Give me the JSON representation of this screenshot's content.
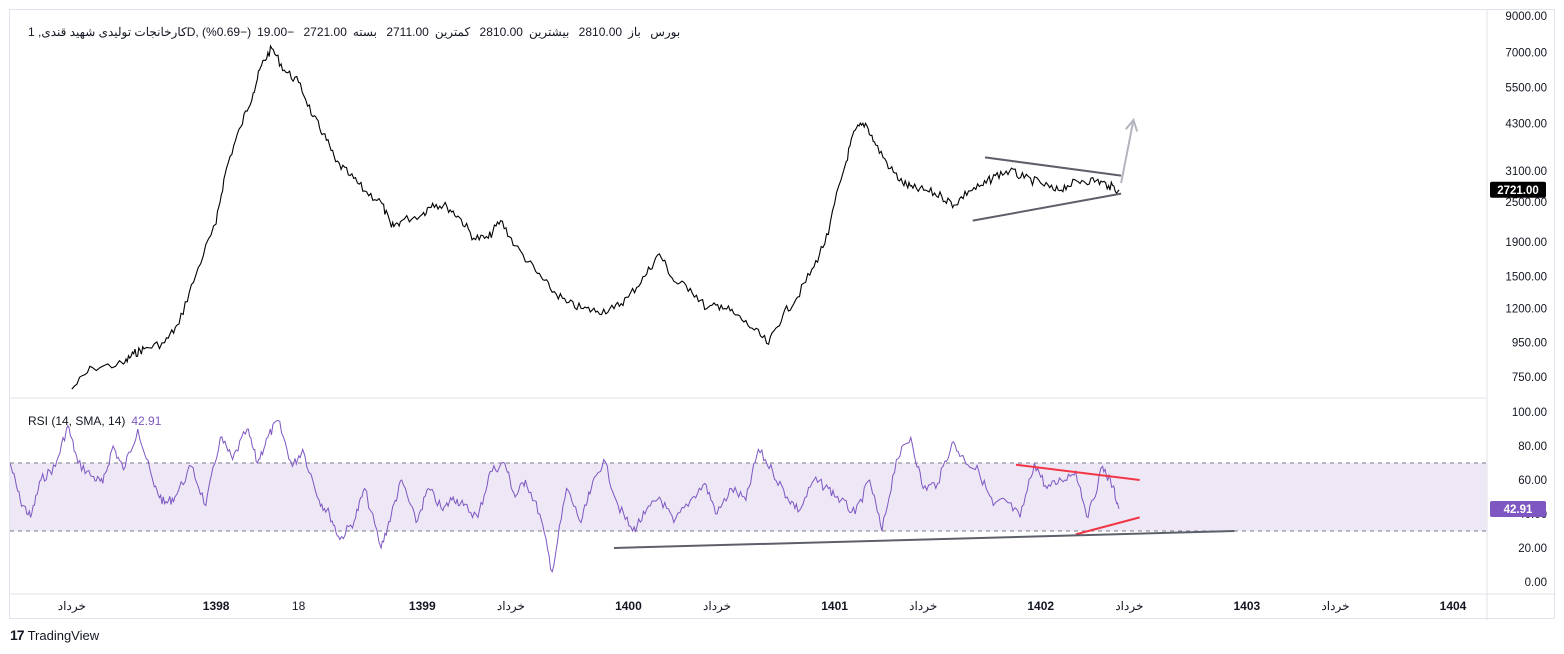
{
  "header": {
    "symbol_title": "کارخانجات تولیدی شهید قندی, 1D, بورس",
    "open_label": "باز",
    "open_value": "2810.00",
    "high_label": "بیشترین",
    "high_value": "2810.00",
    "low_label": "کمترین",
    "low_value": "2711.00",
    "close_label": "بسته",
    "close_value": "2721.00",
    "change": "−19.00",
    "change_pct": "(−0.69%)"
  },
  "rsi_header": {
    "label": "RSI (14, SMA, 14)",
    "value": "42.91"
  },
  "branding": {
    "logo_mark": "17",
    "name": "TradingView"
  },
  "colors": {
    "price_line": "#000000",
    "rsi_line": "#7e57c2",
    "rsi_band": "#ede7f6",
    "trendline_gray": "#5d606b",
    "trendline_red": "#f23645",
    "arrow": "#b2b5be",
    "price_badge_bg": "#000000",
    "rsi_badge_bg": "#7e57c2"
  },
  "chart_data": [
    {
      "type": "line",
      "title": "کارخانجات تولیدی شهید قندی, 1D, بورس",
      "scale": "log",
      "y_ticks": [
        "9000.00",
        "7000.00",
        "5500.00",
        "4300.00",
        "3100.00",
        "2500.00",
        "1900.00",
        "1500.00",
        "1200.00",
        "950.00",
        "750.00"
      ],
      "last_price": "2721.00",
      "x_ticks": [
        "خرداد",
        "1398",
        "18",
        "1399",
        "خرداد",
        "1400",
        "خرداد",
        "1401",
        "خرداد",
        "1402",
        "خرداد",
        "1403",
        "خرداد",
        "1404"
      ],
      "series": [
        {
          "x": [
            1397.3,
            1397.4,
            1397.55,
            1397.6,
            1397.65,
            1397.75,
            1397.82,
            1397.9,
            1398.0,
            1398.05,
            1398.12,
            1398.18,
            1398.22,
            1398.27,
            1398.33,
            1398.4,
            1398.47,
            1398.52,
            1398.58,
            1398.65,
            1398.72,
            1398.8,
            1398.85,
            1398.9,
            1399.0,
            1399.05,
            1399.12,
            1399.18,
            1399.25,
            1399.32,
            1399.38,
            1399.45,
            1399.55,
            1399.62,
            1399.7,
            1399.78,
            1399.85,
            1399.93,
            1400.0,
            1400.08,
            1400.15,
            1400.22,
            1400.3,
            1400.38,
            1400.45,
            1400.52,
            1400.6,
            1400.68,
            1400.75,
            1400.82,
            1400.9,
            1400.97,
            1401.05,
            1401.1,
            1401.15,
            1401.2,
            1401.27,
            1401.33,
            1401.38,
            1401.45,
            1401.52,
            1401.58,
            1401.65,
            1401.72,
            1401.78,
            1401.85,
            1401.92,
            1402.0,
            1402.07,
            1402.13,
            1402.2,
            1402.27,
            1402.33,
            1402.38
          ],
          "y": [
            690,
            800,
            820,
            880,
            910,
            950,
            1080,
            1500,
            2150,
            3150,
            4200,
            5300,
            6400,
            7200,
            6200,
            5700,
            4500,
            4000,
            3300,
            3000,
            2700,
            2500,
            2100,
            2200,
            2300,
            2480,
            2420,
            2250,
            1950,
            1950,
            2200,
            1850,
            1550,
            1380,
            1250,
            1200,
            1180,
            1200,
            1300,
            1500,
            1750,
            1450,
            1380,
            1200,
            1230,
            1150,
            1050,
            940,
            1150,
            1300,
            1600,
            2000,
            3200,
            4100,
            4300,
            3700,
            3150,
            2850,
            2750,
            2700,
            2600,
            2450,
            2700,
            2800,
            3000,
            3100,
            2950,
            2850,
            2700,
            2800,
            2900,
            2900,
            2800,
            2721
          ]
        }
      ],
      "annotations": [
        {
          "type": "trendline",
          "color": "#5d606b",
          "from": [
            1401.73,
            3400
          ],
          "to": [
            1402.39,
            3000
          ]
        },
        {
          "type": "trendline",
          "color": "#5d606b",
          "from": [
            1401.67,
            2200
          ],
          "to": [
            1402.39,
            2650
          ]
        },
        {
          "type": "arrow",
          "color": "#b2b5be",
          "from": [
            1402.39,
            2850
          ],
          "to": [
            1402.45,
            4400
          ]
        }
      ]
    },
    {
      "type": "line",
      "title": "RSI (14, SMA, 14)",
      "ylim": [
        0,
        100
      ],
      "y_ticks": [
        "100.00",
        "80.00",
        "60.00",
        "40.00",
        "20.00",
        "0.00"
      ],
      "bands": [
        70,
        30
      ],
      "last_value": "42.91",
      "series": [
        {
          "x": [
            1397.0,
            1397.05,
            1397.1,
            1397.15,
            1397.22,
            1397.28,
            1397.33,
            1397.4,
            1397.45,
            1397.5,
            1397.55,
            1397.62,
            1397.7,
            1397.75,
            1397.8,
            1397.88,
            1397.95,
            1398.02,
            1398.08,
            1398.15,
            1398.2,
            1398.25,
            1398.3,
            1398.37,
            1398.42,
            1398.5,
            1398.55,
            1398.6,
            1398.67,
            1398.72,
            1398.8,
            1398.85,
            1398.9,
            1398.97,
            1399.03,
            1399.1,
            1399.15,
            1399.2,
            1399.27,
            1399.33,
            1399.4,
            1399.45,
            1399.5,
            1399.57,
            1399.63,
            1399.7,
            1399.77,
            1399.82,
            1399.88,
            1399.95,
            1400.02,
            1400.08,
            1400.15,
            1400.22,
            1400.3,
            1400.37,
            1400.43,
            1400.5,
            1400.57,
            1400.63,
            1400.7,
            1400.77,
            1400.83,
            1400.9,
            1400.97,
            1401.03,
            1401.1,
            1401.17,
            1401.23,
            1401.3,
            1401.37,
            1401.43,
            1401.5,
            1401.57,
            1401.63,
            1401.7,
            1401.77,
            1401.83,
            1401.9,
            1401.97,
            1402.03,
            1402.1,
            1402.17,
            1402.23,
            1402.3,
            1402.35,
            1402.38
          ],
          "y": [
            70,
            48,
            38,
            60,
            68,
            92,
            70,
            62,
            58,
            80,
            66,
            90,
            56,
            46,
            50,
            68,
            45,
            85,
            72,
            90,
            70,
            85,
            95,
            68,
            78,
            48,
            40,
            25,
            36,
            55,
            20,
            40,
            60,
            35,
            55,
            42,
            50,
            45,
            38,
            65,
            70,
            50,
            60,
            40,
            6,
            55,
            35,
            55,
            72,
            45,
            30,
            40,
            50,
            35,
            48,
            58,
            40,
            55,
            48,
            78,
            65,
            50,
            42,
            60,
            55,
            48,
            40,
            60,
            30,
            72,
            85,
            55,
            58,
            82,
            72,
            65,
            45,
            48,
            38,
            70,
            55,
            60,
            65,
            38,
            68,
            56,
            43
          ]
        }
      ],
      "annotations": [
        {
          "type": "trendline",
          "color": "#f23645",
          "from": [
            1401.88,
            69
          ],
          "to": [
            1402.48,
            60
          ]
        },
        {
          "type": "trendline",
          "color": "#f23645",
          "from": [
            1402.17,
            28
          ],
          "to": [
            1402.48,
            38
          ]
        },
        {
          "type": "trendline",
          "color": "#5d606b",
          "from": [
            1399.93,
            20
          ],
          "to": [
            1402.94,
            30
          ]
        }
      ]
    }
  ]
}
